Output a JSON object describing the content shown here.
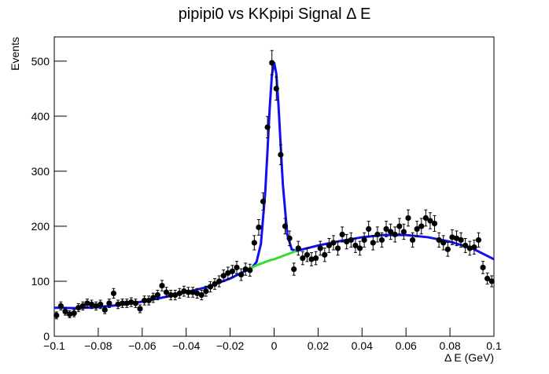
{
  "chart_data": {
    "type": "scatter",
    "title": "pipipi0 vs KKpipi Signal Δ E",
    "x_label": "Δ E (GeV)",
    "y_label": "Events",
    "xlim": [
      -0.1,
      0.1
    ],
    "ylim": [
      0,
      544
    ],
    "xticks": [
      {
        "value": -0.1,
        "label": "−0.1"
      },
      {
        "value": -0.08,
        "label": "−0.08"
      },
      {
        "value": -0.06,
        "label": "−0.06"
      },
      {
        "value": -0.04,
        "label": "−0.04"
      },
      {
        "value": -0.02,
        "label": "−0.02"
      },
      0,
      0.02,
      0.04,
      0.06,
      0.08,
      0.1
    ],
    "yticks": [
      0,
      100,
      200,
      300,
      400,
      500
    ],
    "points": {
      "color": "#000000",
      "x": [
        -0.099,
        -0.097,
        -0.095,
        -0.093,
        -0.091,
        -0.089,
        -0.087,
        -0.085,
        -0.083,
        -0.081,
        -0.079,
        -0.077,
        -0.075,
        -0.073,
        -0.071,
        -0.069,
        -0.067,
        -0.065,
        -0.063,
        -0.061,
        -0.059,
        -0.057,
        -0.055,
        -0.053,
        -0.051,
        -0.049,
        -0.047,
        -0.045,
        -0.043,
        -0.041,
        -0.039,
        -0.037,
        -0.035,
        -0.033,
        -0.031,
        -0.029,
        -0.027,
        -0.025,
        -0.023,
        -0.021,
        -0.019,
        -0.017,
        -0.015,
        -0.013,
        -0.011,
        -0.009,
        -0.007,
        -0.005,
        -0.003,
        -0.001,
        0.001,
        0.003,
        0.005,
        0.007,
        0.009,
        0.011,
        0.013,
        0.015,
        0.017,
        0.019,
        0.021,
        0.023,
        0.025,
        0.027,
        0.029,
        0.031,
        0.033,
        0.035,
        0.037,
        0.039,
        0.041,
        0.043,
        0.045,
        0.047,
        0.049,
        0.051,
        0.053,
        0.055,
        0.057,
        0.059,
        0.061,
        0.063,
        0.065,
        0.067,
        0.069,
        0.071,
        0.073,
        0.075,
        0.077,
        0.079,
        0.081,
        0.083,
        0.085,
        0.087,
        0.089,
        0.091,
        0.093,
        0.095,
        0.097,
        0.099
      ],
      "values": [
        38,
        55,
        45,
        40,
        42,
        52,
        55,
        60,
        58,
        55,
        58,
        48,
        60,
        78,
        58,
        60,
        60,
        62,
        60,
        50,
        65,
        65,
        70,
        75,
        92,
        80,
        75,
        75,
        78,
        82,
        80,
        80,
        78,
        75,
        82,
        90,
        95,
        100,
        110,
        115,
        118,
        125,
        112,
        122,
        120,
        170,
        198,
        245,
        380,
        497,
        450,
        330,
        200,
        178,
        122,
        160,
        142,
        148,
        140,
        142,
        160,
        148,
        165,
        170,
        160,
        185,
        172,
        175,
        165,
        160,
        175,
        195,
        170,
        185,
        175,
        195,
        190,
        185,
        200,
        190,
        215,
        175,
        195,
        200,
        215,
        210,
        205,
        175,
        170,
        158,
        180,
        178,
        175,
        165,
        160,
        162,
        175,
        125,
        105,
        100
      ],
      "errors": [
        6.2,
        7.4,
        6.7,
        6.3,
        6.5,
        7.2,
        7.4,
        7.7,
        7.6,
        7.4,
        7.6,
        6.9,
        7.7,
        8.8,
        7.6,
        7.7,
        7.7,
        7.9,
        7.7,
        7.1,
        8.1,
        8.1,
        8.4,
        8.7,
        9.6,
        8.9,
        8.7,
        8.7,
        8.8,
        9.1,
        8.9,
        8.9,
        8.8,
        8.7,
        9.1,
        9.5,
        9.7,
        10,
        10.5,
        10.7,
        10.9,
        11.2,
        10.6,
        11,
        11,
        13,
        14.1,
        15.7,
        19.5,
        22.3,
        21.2,
        18.2,
        14.1,
        13.3,
        11,
        12.6,
        11.9,
        12.2,
        11.8,
        11.9,
        12.6,
        12.2,
        12.8,
        13,
        12.6,
        13.6,
        13.1,
        13.2,
        12.8,
        12.6,
        13.2,
        14,
        13,
        13.6,
        13.2,
        14,
        13.8,
        13.6,
        14.1,
        13.8,
        14.7,
        13.2,
        14,
        14.1,
        14.7,
        14.5,
        14.3,
        13.2,
        13,
        12.6,
        13.4,
        13.3,
        13.2,
        12.8,
        12.6,
        12.7,
        13.2,
        11.2,
        10.2,
        10
      ]
    },
    "background": {
      "color": "#33dd33",
      "x": [
        -0.012,
        -0.01,
        -0.008,
        -0.006,
        -0.004,
        -0.002,
        0,
        0.002,
        0.004,
        0.006,
        0.008,
        0.01
      ],
      "values": [
        122,
        125,
        129,
        132,
        135,
        138,
        140,
        143,
        146,
        149,
        152,
        155
      ]
    },
    "fit": {
      "color": "#1010ee",
      "x": [
        -0.1,
        -0.09,
        -0.08,
        -0.07,
        -0.06,
        -0.05,
        -0.04,
        -0.03,
        -0.02,
        -0.01,
        -0.008,
        -0.006,
        -0.004,
        -0.003,
        -0.002,
        -0.001,
        0,
        0.001,
        0.002,
        0.003,
        0.004,
        0.006,
        0.008,
        0.01,
        0.02,
        0.03,
        0.04,
        0.05,
        0.06,
        0.07,
        0.08,
        0.09,
        0.1
      ],
      "values": [
        52,
        51,
        53,
        57,
        63,
        71,
        80,
        90,
        105,
        125,
        135,
        168,
        264,
        338,
        415,
        475,
        498,
        477,
        420,
        346,
        275,
        185,
        158,
        155,
        165,
        173,
        180,
        184,
        184,
        180,
        172,
        160,
        140
      ]
    }
  }
}
